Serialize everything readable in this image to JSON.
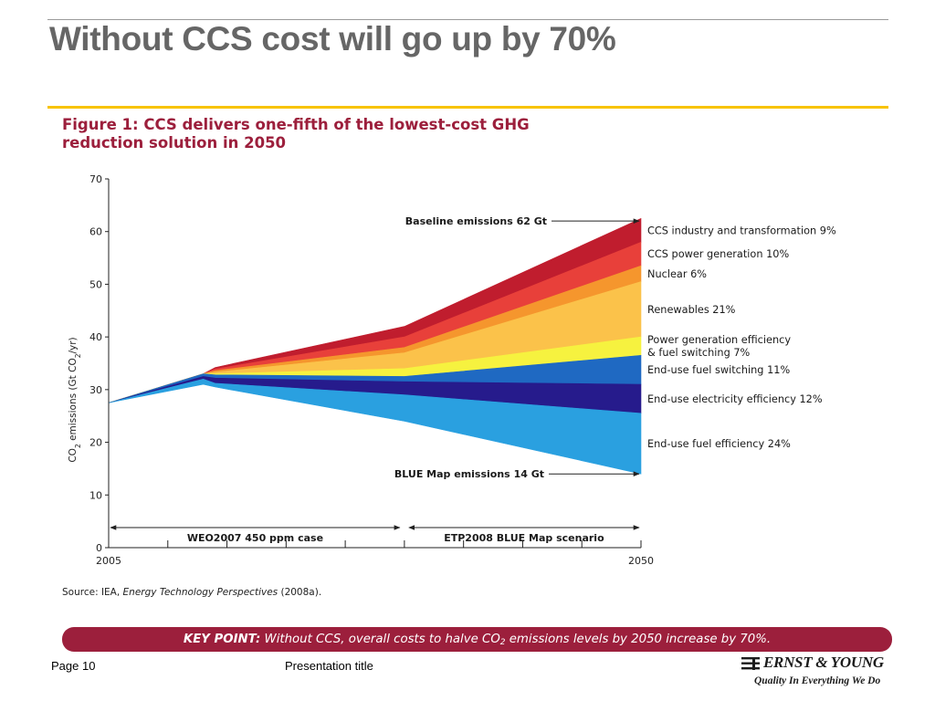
{
  "slide": {
    "title": "Without CCS cost will go up by 70%",
    "figure_title_line1": "Figure 1: CCS delivers one-fifth of the lowest-cost GHG",
    "figure_title_line2": "reduction solution in 2050",
    "source_label": "Source:",
    "source_pre": " IEA, ",
    "source_italic": "Energy Technology Perspectives",
    "source_post": " (2008a).",
    "key_point_label": "KEY POINT:",
    "key_point_pre": " Without CCS, overall costs to halve CO",
    "key_point_sub": "2",
    "key_point_post": " emissions levels by 2050 increase by 70%.",
    "footer_page": "Page 10",
    "footer_presentation": "Presentation title",
    "logo_name": "ERNST & YOUNG",
    "logo_tagline": "Quality In Everything We Do"
  },
  "colors": {
    "title_gray": "#666666",
    "gold_rule": "#f8c300",
    "brand_crimson": "#9c1f3c"
  },
  "chart_data": {
    "type": "area",
    "ylabel_pre": "CO",
    "ylabel_sub1": "2",
    "ylabel_mid": " emissions (Gt CO",
    "ylabel_sub2": "2",
    "ylabel_post": "/yr)",
    "ylim": [
      0,
      70
    ],
    "yticks": [
      0,
      10,
      20,
      30,
      40,
      50,
      60,
      70
    ],
    "xlim": [
      2005,
      2050
    ],
    "xtick_labels": [
      {
        "x": 2005,
        "label": "2005"
      },
      {
        "x": 2050,
        "label": "2050"
      }
    ],
    "minor_xticks": [
      2010,
      2015,
      2020,
      2025,
      2030,
      2035,
      2040,
      2045
    ],
    "x": [
      2005,
      2013,
      2014,
      2030,
      2050
    ],
    "baseline": [
      27.5,
      33,
      34.2,
      42,
      62.5
    ],
    "stacks": [
      {
        "label": "CCS industry and transformation 9%",
        "color": "#c01d2e",
        "upper": [
          27.5,
          33,
          34.2,
          42,
          62.5
        ]
      },
      {
        "label": "CCS power generation 10%",
        "color": "#e8403a",
        "upper": [
          27.5,
          33,
          33.9,
          40,
          58
        ]
      },
      {
        "label": "Nuclear 6%",
        "color": "#f5962d",
        "upper": [
          27.5,
          33,
          33.6,
          38,
          53.5
        ]
      },
      {
        "label": "Renewables 21%",
        "color": "#fbc24a",
        "upper": [
          27.5,
          33,
          33.3,
          37,
          50.5
        ]
      },
      {
        "label": "Power generation efficiency\n& fuel switching 7%",
        "color": "#f6f23f",
        "upper": [
          27.5,
          33,
          33.0,
          34,
          40
        ]
      },
      {
        "label": "End-use fuel switching 11%",
        "color": "#1f69c2",
        "upper": [
          27.5,
          33,
          32.8,
          32.5,
          36.5
        ]
      },
      {
        "label": "End-use electricity efficiency 12%",
        "color": "#261b8c",
        "upper": [
          27.5,
          32.5,
          32.2,
          31.5,
          31
        ]
      },
      {
        "label": "End-use fuel efficiency 24%",
        "color": "#2aa0e0",
        "upper": [
          27.5,
          32,
          31.2,
          29,
          25.5
        ],
        "lower": [
          27.5,
          31,
          30.5,
          24,
          14
        ]
      }
    ],
    "annotations": [
      {
        "text": "Baseline emissions 62 Gt",
        "y": 62
      },
      {
        "text": "BLUE Map emissions 14 Gt",
        "y": 14
      }
    ],
    "phases": [
      {
        "label": "WEO2007 450 ppm case",
        "from": 2005,
        "to": 2030
      },
      {
        "label": "ETP2008 BLUE Map scenario",
        "from": 2030,
        "to": 2050
      }
    ]
  }
}
